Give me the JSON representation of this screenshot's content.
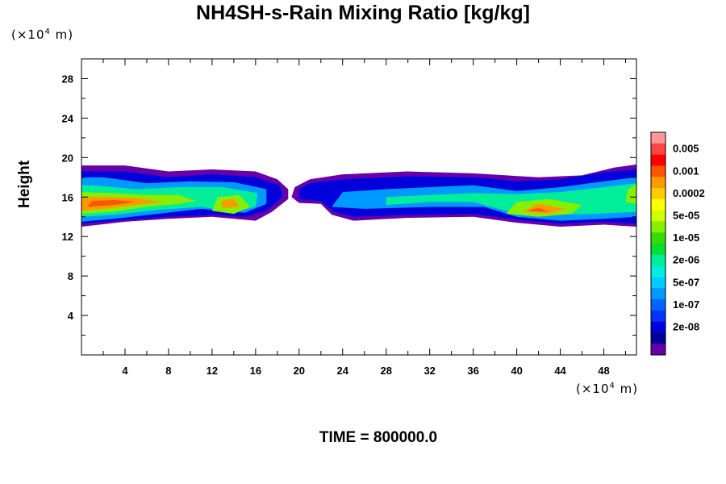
{
  "chart_data": {
    "type": "heatmap",
    "title": "NH4SH-s-Rain Mixing Ratio [kg/kg]",
    "ylabel": "Height",
    "xlabel": "",
    "x_unit_prefix": "(×10",
    "x_unit_exp": "4",
    "x_unit_suffix": " m)",
    "y_unit_prefix": "(×10",
    "y_unit_exp": "4",
    "y_unit_suffix": " m)",
    "xlim": [
      0,
      51
    ],
    "ylim": [
      0,
      30
    ],
    "x_ticks": [
      4,
      8,
      12,
      16,
      20,
      24,
      28,
      32,
      36,
      40,
      44,
      48
    ],
    "y_ticks": [
      4,
      8,
      12,
      16,
      20,
      24,
      28
    ],
    "colorbar": {
      "labels": [
        "0.005",
        "0.001",
        "0.0002",
        "5e-05",
        "1e-05",
        "2e-06",
        "5e-07",
        "1e-07",
        "2e-08"
      ],
      "colors": [
        "#ff9999",
        "#ff4444",
        "#ff0000",
        "#ff5500",
        "#ff9900",
        "#ffcc00",
        "#ffff00",
        "#ccff00",
        "#88ee00",
        "#33dd00",
        "#00dd33",
        "#00ee99",
        "#00eedd",
        "#00ccff",
        "#0099ff",
        "#0066ff",
        "#0033ff",
        "#0000dd",
        "#000099",
        "#6600aa"
      ]
    },
    "regions": [
      {
        "level": 0,
        "points": [
          [
            0,
            13
          ],
          [
            4,
            13.5
          ],
          [
            8,
            13.8
          ],
          [
            12,
            14
          ],
          [
            16,
            13.6
          ],
          [
            17.5,
            14.5
          ],
          [
            19,
            15.8
          ],
          [
            19,
            16.8
          ],
          [
            18,
            17.8
          ],
          [
            16,
            18.6
          ],
          [
            12,
            18.8
          ],
          [
            8,
            18.6
          ],
          [
            4,
            19.2
          ],
          [
            0,
            19.2
          ]
        ]
      },
      {
        "level": 0,
        "points": [
          [
            19.3,
            16
          ],
          [
            20,
            15.4
          ],
          [
            22,
            15.3
          ],
          [
            23,
            14.2
          ],
          [
            25,
            13.6
          ],
          [
            30,
            13.9
          ],
          [
            36,
            14
          ],
          [
            40,
            13.4
          ],
          [
            44,
            13
          ],
          [
            48,
            13.2
          ],
          [
            51,
            13
          ],
          [
            51,
            19.3
          ],
          [
            49,
            19
          ],
          [
            46,
            18.2
          ],
          [
            42,
            18
          ],
          [
            36,
            18.4
          ],
          [
            30,
            18.6
          ],
          [
            24,
            18.3
          ],
          [
            21,
            17.8
          ],
          [
            19.6,
            17
          ]
        ]
      },
      {
        "level": 1,
        "points": [
          [
            0,
            13.3
          ],
          [
            4,
            13.7
          ],
          [
            8,
            14
          ],
          [
            12,
            14.2
          ],
          [
            15,
            14
          ],
          [
            17,
            14.6
          ],
          [
            18.5,
            16
          ],
          [
            18.2,
            17.2
          ],
          [
            16,
            18
          ],
          [
            12,
            18.3
          ],
          [
            8,
            18
          ],
          [
            4,
            18.6
          ],
          [
            0,
            18.6
          ]
        ]
      },
      {
        "level": 1,
        "points": [
          [
            20,
            15.8
          ],
          [
            22,
            15.6
          ],
          [
            23.2,
            14.5
          ],
          [
            25,
            14
          ],
          [
            30,
            14.2
          ],
          [
            36,
            14.3
          ],
          [
            40,
            13.7
          ],
          [
            44,
            13.3
          ],
          [
            48,
            13.5
          ],
          [
            51,
            13.3
          ],
          [
            51,
            18.8
          ],
          [
            48,
            18.5
          ],
          [
            44,
            17.8
          ],
          [
            40,
            17.6
          ],
          [
            36,
            18
          ],
          [
            30,
            18.1
          ],
          [
            24,
            17.8
          ],
          [
            21,
            17.4
          ],
          [
            20,
            16.8
          ]
        ]
      },
      {
        "level": 2,
        "points": [
          [
            0,
            13.5
          ],
          [
            3,
            13.8
          ],
          [
            7,
            14.3
          ],
          [
            11,
            14.8
          ],
          [
            15,
            14.4
          ],
          [
            17,
            15.3
          ],
          [
            17,
            16.8
          ],
          [
            14,
            17.5
          ],
          [
            10,
            17.6
          ],
          [
            6,
            17.4
          ],
          [
            2,
            18
          ],
          [
            0,
            18
          ]
        ]
      },
      {
        "level": 2,
        "points": [
          [
            23,
            15
          ],
          [
            26,
            14.8
          ],
          [
            32,
            15
          ],
          [
            37,
            15
          ],
          [
            40,
            14
          ],
          [
            44,
            13.6
          ],
          [
            48,
            13.8
          ],
          [
            51,
            14
          ],
          [
            51,
            18
          ],
          [
            48,
            17.6
          ],
          [
            44,
            17
          ],
          [
            40,
            16.6
          ],
          [
            36,
            17.2
          ],
          [
            32,
            17
          ],
          [
            28,
            16.8
          ],
          [
            24,
            16.5
          ]
        ]
      },
      {
        "level": 3,
        "points": [
          [
            0,
            14
          ],
          [
            3,
            14.2
          ],
          [
            7,
            14.7
          ],
          [
            11,
            15
          ],
          [
            14,
            14.5
          ],
          [
            16,
            15
          ],
          [
            16.2,
            16.4
          ],
          [
            13,
            17
          ],
          [
            9,
            17
          ],
          [
            5,
            16.8
          ],
          [
            1,
            17.2
          ],
          [
            0,
            17.2
          ]
        ]
      },
      {
        "level": 3,
        "points": [
          [
            28,
            15.2
          ],
          [
            32,
            15.5
          ],
          [
            36,
            15.5
          ],
          [
            39,
            14.6
          ],
          [
            43,
            14.2
          ],
          [
            47,
            14.3
          ],
          [
            51,
            14.5
          ],
          [
            51,
            17.4
          ],
          [
            48,
            17
          ],
          [
            44,
            16.5
          ],
          [
            40,
            16.3
          ],
          [
            36,
            16.4
          ],
          [
            32,
            16.2
          ],
          [
            28,
            16
          ]
        ]
      },
      {
        "level": 4,
        "points": [
          [
            0,
            14.3
          ],
          [
            3,
            14.5
          ],
          [
            6,
            15
          ],
          [
            9,
            15.3
          ],
          [
            10.5,
            15.6
          ],
          [
            9,
            16.2
          ],
          [
            6,
            16.2
          ],
          [
            3,
            16.4
          ],
          [
            0,
            16.5
          ]
        ]
      },
      {
        "level": 4,
        "points": [
          [
            12,
            14.6
          ],
          [
            14,
            14.3
          ],
          [
            15.5,
            15
          ],
          [
            14.5,
            16.2
          ],
          [
            12.5,
            16
          ]
        ]
      },
      {
        "level": 4,
        "points": [
          [
            39,
            14.3
          ],
          [
            42,
            14
          ],
          [
            45,
            14.3
          ],
          [
            46,
            15.2
          ],
          [
            43,
            15.8
          ],
          [
            40,
            15.5
          ]
        ]
      },
      {
        "level": 4,
        "points": [
          [
            50,
            15.5
          ],
          [
            51,
            15.3
          ],
          [
            51,
            17.3
          ],
          [
            50.2,
            16.8
          ]
        ]
      },
      {
        "level": 5,
        "points": [
          [
            0,
            14.6
          ],
          [
            2,
            14.8
          ],
          [
            5,
            15.2
          ],
          [
            7.5,
            15.5
          ],
          [
            5,
            15.9
          ],
          [
            2,
            16
          ],
          [
            0,
            16
          ]
        ]
      },
      {
        "level": 5,
        "points": [
          [
            13,
            14.9
          ],
          [
            14.5,
            15
          ],
          [
            14,
            15.8
          ],
          [
            12.8,
            15.6
          ]
        ]
      },
      {
        "level": 5,
        "points": [
          [
            40.5,
            14.5
          ],
          [
            43,
            14.3
          ],
          [
            44.5,
            14.8
          ],
          [
            42,
            15.3
          ]
        ]
      },
      {
        "level": 6,
        "points": [
          [
            0.5,
            15
          ],
          [
            3,
            15.2
          ],
          [
            5,
            15.5
          ],
          [
            3,
            15.7
          ],
          [
            1,
            15.6
          ]
        ]
      },
      {
        "level": 6,
        "points": [
          [
            41,
            14.6
          ],
          [
            43,
            14.5
          ],
          [
            42,
            14.9
          ]
        ]
      }
    ]
  },
  "time_label": "TIME = 800000.0"
}
